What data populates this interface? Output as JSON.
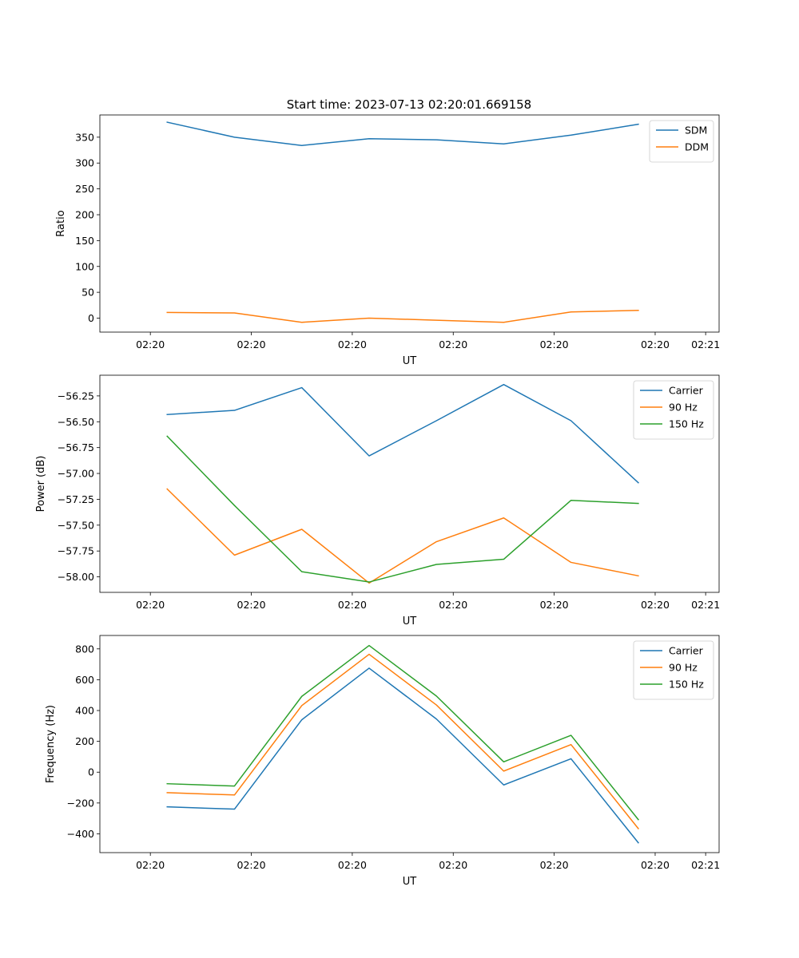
{
  "figure_title": "Start time: 2023-07-13 02:20:01.669158",
  "colors": {
    "blue": "#1f77b4",
    "orange": "#ff7f0e",
    "green": "#2ca02c",
    "axis": "#000000",
    "legend_border": "#cccccc",
    "background": "#ffffff"
  },
  "chart_data": [
    {
      "type": "line",
      "title": "Start time: 2023-07-13 02:20:01.669158",
      "xlabel": "UT",
      "ylabel": "Ratio",
      "x": [
        1,
        2,
        3,
        4,
        5,
        6,
        7,
        8
      ],
      "xlim": [
        0,
        9.2
      ],
      "xticks": [
        0.75,
        2.25,
        3.75,
        5.25,
        6.75,
        8.25,
        9.0
      ],
      "xtick_labels": [
        "02:20",
        "02:20",
        "02:20",
        "02:20",
        "02:20",
        "02:20",
        "02:21"
      ],
      "ylim": [
        -27,
        393
      ],
      "yticks": [
        0,
        50,
        100,
        150,
        200,
        250,
        300,
        350
      ],
      "ytick_labels": [
        "0",
        "50",
        "100",
        "150",
        "200",
        "250",
        "300",
        "350"
      ],
      "legend_position": "top-right",
      "grid": false,
      "series": [
        {
          "name": "SDM",
          "color": "#1f77b4",
          "values": [
            379,
            350,
            334,
            347,
            345,
            337,
            354,
            375
          ]
        },
        {
          "name": "DDM",
          "color": "#ff7f0e",
          "values": [
            11,
            10,
            -8,
            0,
            -4,
            -8,
            12,
            15
          ]
        }
      ]
    },
    {
      "type": "line",
      "title": "",
      "xlabel": "UT",
      "ylabel": "Power (dB)",
      "x": [
        1,
        2,
        3,
        4,
        5,
        6,
        7,
        8
      ],
      "xlim": [
        0,
        9.2
      ],
      "xticks": [
        0.75,
        2.25,
        3.75,
        5.25,
        6.75,
        8.25,
        9.0
      ],
      "xtick_labels": [
        "02:20",
        "02:20",
        "02:20",
        "02:20",
        "02:20",
        "02:20",
        "02:21"
      ],
      "ylim": [
        -58.15,
        -56.05
      ],
      "yticks": [
        -58.0,
        -57.75,
        -57.5,
        -57.25,
        -57.0,
        -56.75,
        -56.5,
        -56.25
      ],
      "ytick_labels": [
        "−58.00",
        "−57.75",
        "−57.50",
        "−57.25",
        "−57.00",
        "−56.75",
        "−56.50",
        "−56.25"
      ],
      "legend_position": "top-right",
      "grid": false,
      "series": [
        {
          "name": "Carrier",
          "color": "#1f77b4",
          "values": [
            -56.43,
            -56.39,
            -56.17,
            -56.83,
            -56.49,
            -56.14,
            -56.49,
            -57.09
          ]
        },
        {
          "name": "90 Hz",
          "color": "#ff7f0e",
          "values": [
            -57.15,
            -57.79,
            -57.54,
            -58.06,
            -57.66,
            -57.43,
            -57.86,
            -57.99
          ]
        },
        {
          "name": "150 Hz",
          "color": "#2ca02c",
          "values": [
            -56.64,
            -57.31,
            -57.95,
            -58.05,
            -57.88,
            -57.83,
            -57.26,
            -57.29
          ]
        }
      ]
    },
    {
      "type": "line",
      "title": "",
      "xlabel": "UT",
      "ylabel": "Frequency (Hz)",
      "x": [
        1,
        2,
        3,
        4,
        5,
        6,
        7,
        8
      ],
      "xlim": [
        0,
        9.2
      ],
      "xticks": [
        0.75,
        2.25,
        3.75,
        5.25,
        6.75,
        8.25,
        9.0
      ],
      "xtick_labels": [
        "02:20",
        "02:20",
        "02:20",
        "02:20",
        "02:20",
        "02:20",
        "02:21"
      ],
      "ylim": [
        -522,
        887
      ],
      "yticks": [
        -400,
        -200,
        0,
        200,
        400,
        600,
        800
      ],
      "ytick_labels": [
        "−400",
        "−200",
        "0",
        "200",
        "400",
        "600",
        "800"
      ],
      "legend_position": "top-right",
      "grid": false,
      "series": [
        {
          "name": "Carrier",
          "color": "#1f77b4",
          "values": [
            -225,
            -240,
            340,
            675,
            345,
            -83,
            87,
            -458
          ]
        },
        {
          "name": "90 Hz",
          "color": "#ff7f0e",
          "values": [
            -133,
            -148,
            432,
            765,
            436,
            7,
            179,
            -366
          ]
        },
        {
          "name": "150 Hz",
          "color": "#2ca02c",
          "values": [
            -75,
            -90,
            492,
            822,
            494,
            67,
            239,
            -308
          ]
        }
      ]
    }
  ]
}
